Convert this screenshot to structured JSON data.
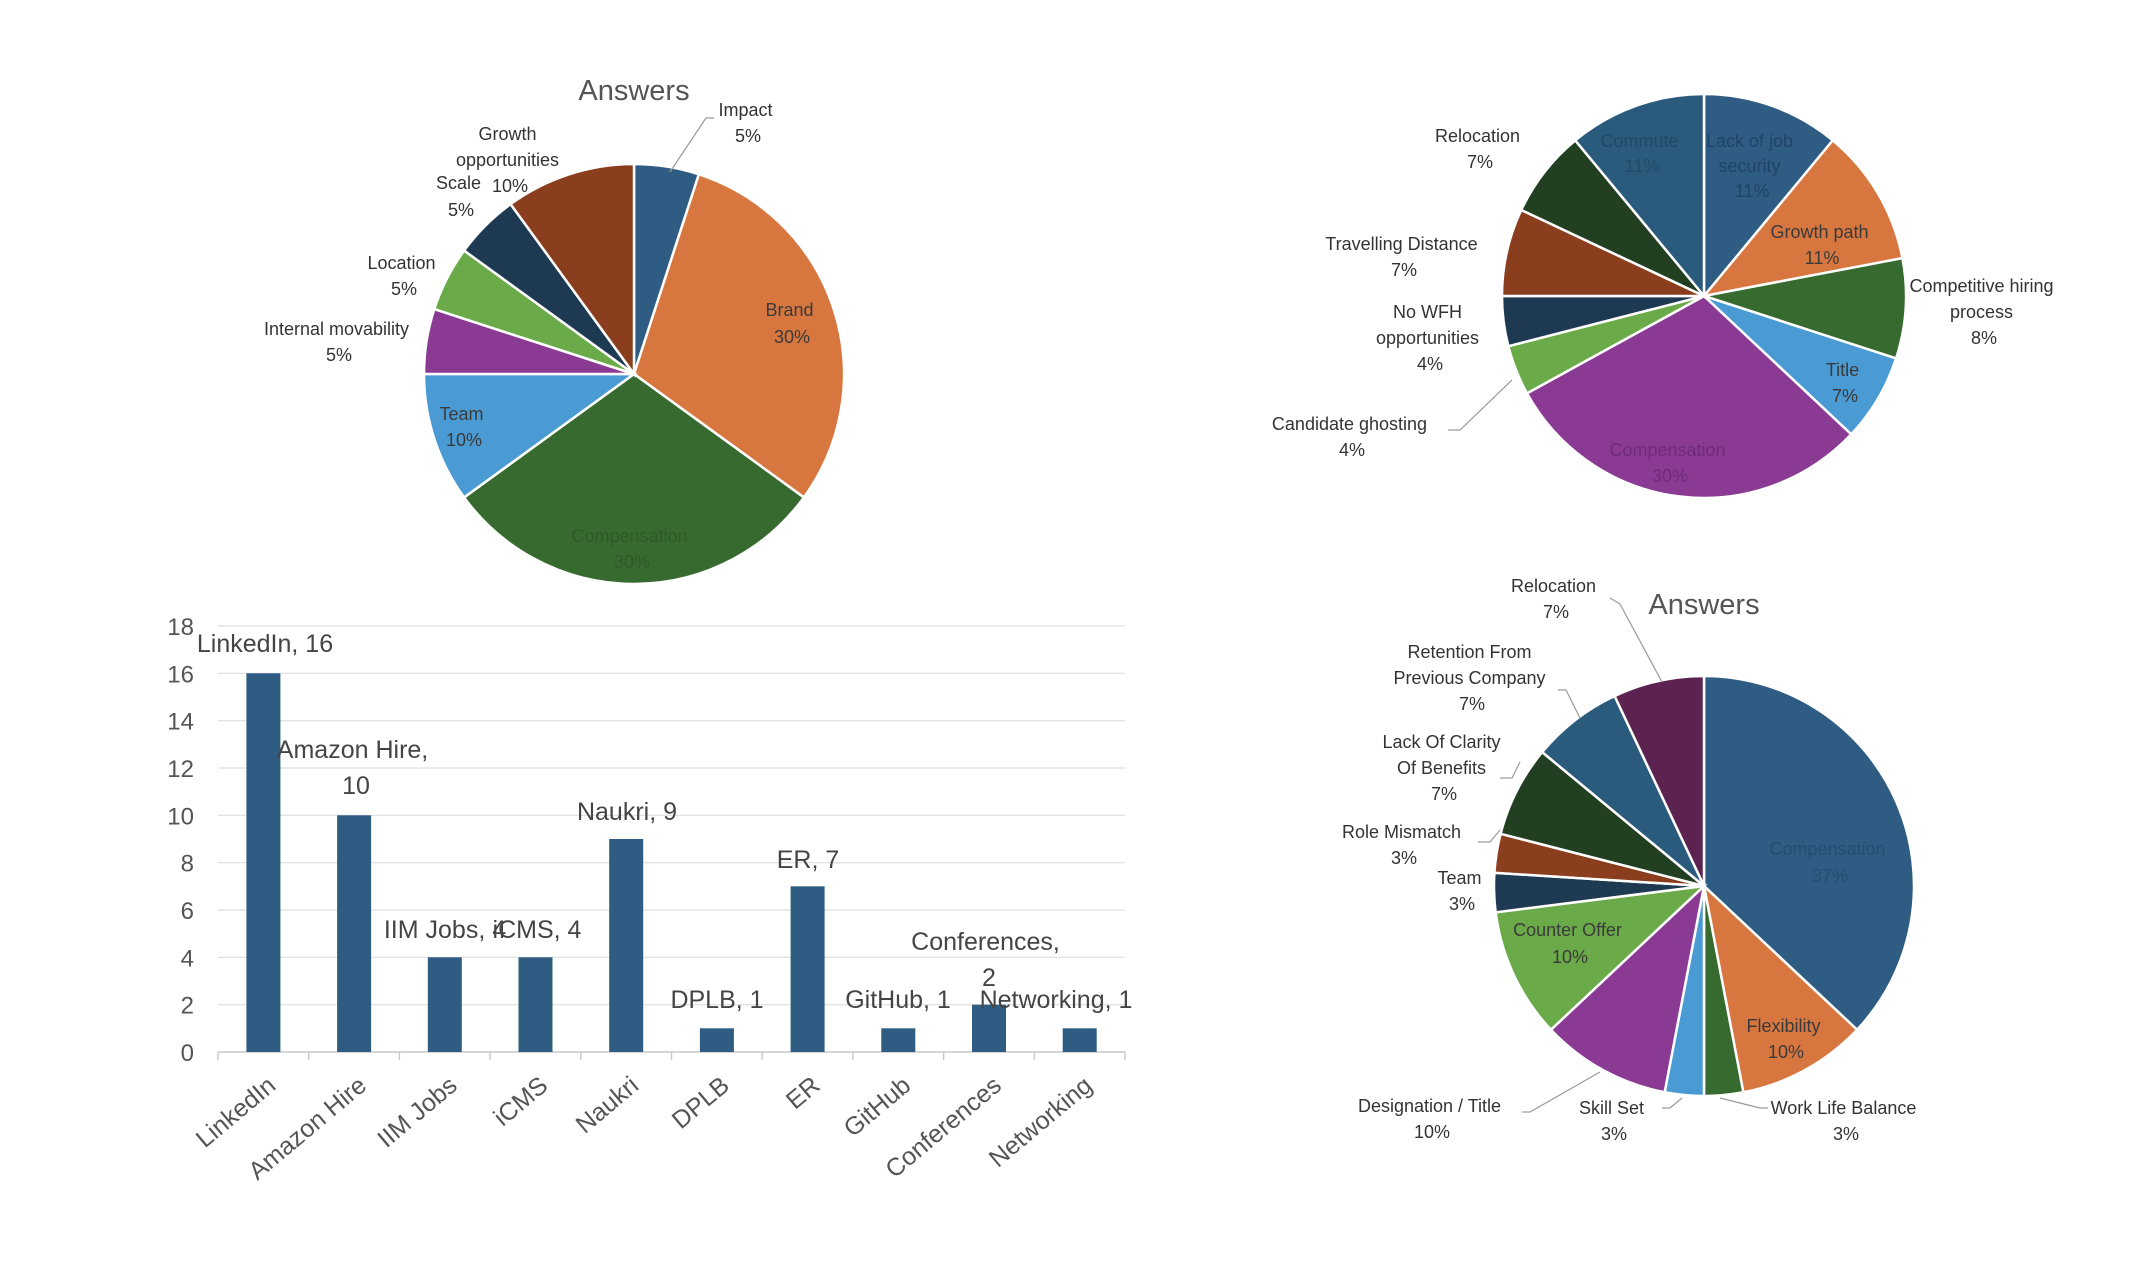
{
  "chart_data": [
    {
      "type": "pie",
      "title": "Answers",
      "colors": {
        "impact": "#2E5C82",
        "brand": "#D7773F",
        "compensation": "#376A2F",
        "team": "#4A9AD4",
        "internal": "#8B3A94",
        "location": "#6BAA48",
        "scale": "#1E3A52",
        "growth": "#8A3E1E"
      },
      "slices": [
        {
          "name": "Impact",
          "value": 5,
          "pct": "5%",
          "color": "#2E5C82"
        },
        {
          "name": "Brand",
          "value": 30,
          "pct": "30%",
          "color": "#D7773F"
        },
        {
          "name": "Compensation",
          "value": 30,
          "pct": "30%",
          "color": "#376A2F"
        },
        {
          "name": "Team",
          "value": 10,
          "pct": "10%",
          "color": "#4A9AD4"
        },
        {
          "name": "Internal movability",
          "value": 5,
          "pct": "5%",
          "color": "#8B3A94"
        },
        {
          "name": "Location",
          "value": 5,
          "pct": "5%",
          "color": "#6BAA48"
        },
        {
          "name": "Scale",
          "value": 5,
          "pct": "5%",
          "color": "#1E3A52"
        },
        {
          "name": "Growth opportunities",
          "value": 10,
          "pct": "10%",
          "color": "#8A3E1E"
        }
      ]
    },
    {
      "type": "pie",
      "title": "",
      "slices": [
        {
          "name": "Lack of job security",
          "value": 11,
          "pct": "11%",
          "color": "#2E5C82"
        },
        {
          "name": "Growth path",
          "value": 11,
          "pct": "11%",
          "color": "#D7773F"
        },
        {
          "name": "Competitive hiring process",
          "value": 8,
          "pct": "8%",
          "color": "#376A2F"
        },
        {
          "name": "Title",
          "value": 7,
          "pct": "7%",
          "color": "#4A9AD4"
        },
        {
          "name": "Compensation",
          "value": 30,
          "pct": "30%",
          "color": "#8B3A94"
        },
        {
          "name": "Candidate ghosting",
          "value": 4,
          "pct": "4%",
          "color": "#6BAA48"
        },
        {
          "name": "No WFH opportunities",
          "value": 4,
          "pct": "4%",
          "color": "#1E3A52"
        },
        {
          "name": "Travelling Distance",
          "value": 7,
          "pct": "7%",
          "color": "#8A3E1E"
        },
        {
          "name": "Relocation",
          "value": 7,
          "pct": "7%",
          "color": "#233F22"
        },
        {
          "name": "Commute",
          "value": 11,
          "pct": "11%",
          "color": "#2A5A7C"
        }
      ]
    },
    {
      "type": "bar",
      "title": "",
      "categories": [
        "LinkedIn",
        "Amazon Hire",
        "IIM Jobs",
        "iCMS",
        "Naukri",
        "DPLB",
        "ER",
        "GitHub",
        "Conferences",
        "Networking"
      ],
      "values": [
        16,
        10,
        4,
        4,
        9,
        1,
        7,
        1,
        2,
        1
      ],
      "data_labels": [
        "LinkedIn, 16",
        "Amazon Hire, 10",
        "IIM Jobs, 4",
        "iCMS, 4",
        "Naukri, 9",
        "DPLB, 1",
        "ER, 7",
        "GitHub, 1",
        "Conferences, 2",
        "Networking, 1"
      ],
      "yticks": [
        "0",
        "2",
        "4",
        "6",
        "8",
        "10",
        "12",
        "14",
        "16",
        "18"
      ],
      "ylim": [
        0,
        18
      ],
      "grid": true,
      "bar_color": "#2E5C82",
      "xlabel": "",
      "ylabel": ""
    },
    {
      "type": "pie",
      "title": "Answers",
      "slices": [
        {
          "name": "Compensation",
          "value": 37,
          "pct": "37%",
          "color": "#2E5C82"
        },
        {
          "name": "Flexibility",
          "value": 10,
          "pct": "10%",
          "color": "#D7773F"
        },
        {
          "name": "Work Life Balance",
          "value": 3,
          "pct": "3%",
          "color": "#376A2F"
        },
        {
          "name": "Skill Set",
          "value": 3,
          "pct": "3%",
          "color": "#4A9AD4"
        },
        {
          "name": "Designation / Title",
          "value": 10,
          "pct": "10%",
          "color": "#8B3A94"
        },
        {
          "name": "Counter Offer",
          "value": 10,
          "pct": "10%",
          "color": "#6BAA48"
        },
        {
          "name": "Team",
          "value": 3,
          "pct": "3%",
          "color": "#1E3A52"
        },
        {
          "name": "Role Mismatch",
          "value": 3,
          "pct": "3%",
          "color": "#8A3E1E"
        },
        {
          "name": "Lack Of Clarity Of Benefits",
          "value": 7,
          "pct": "7%",
          "color": "#233F22"
        },
        {
          "name": "Retention From Previous Company",
          "value": 7,
          "pct": "7%",
          "color": "#2A5A7C"
        },
        {
          "name": "Relocation",
          "value": 7,
          "pct": "7%",
          "color": "#5C2250"
        }
      ]
    }
  ]
}
